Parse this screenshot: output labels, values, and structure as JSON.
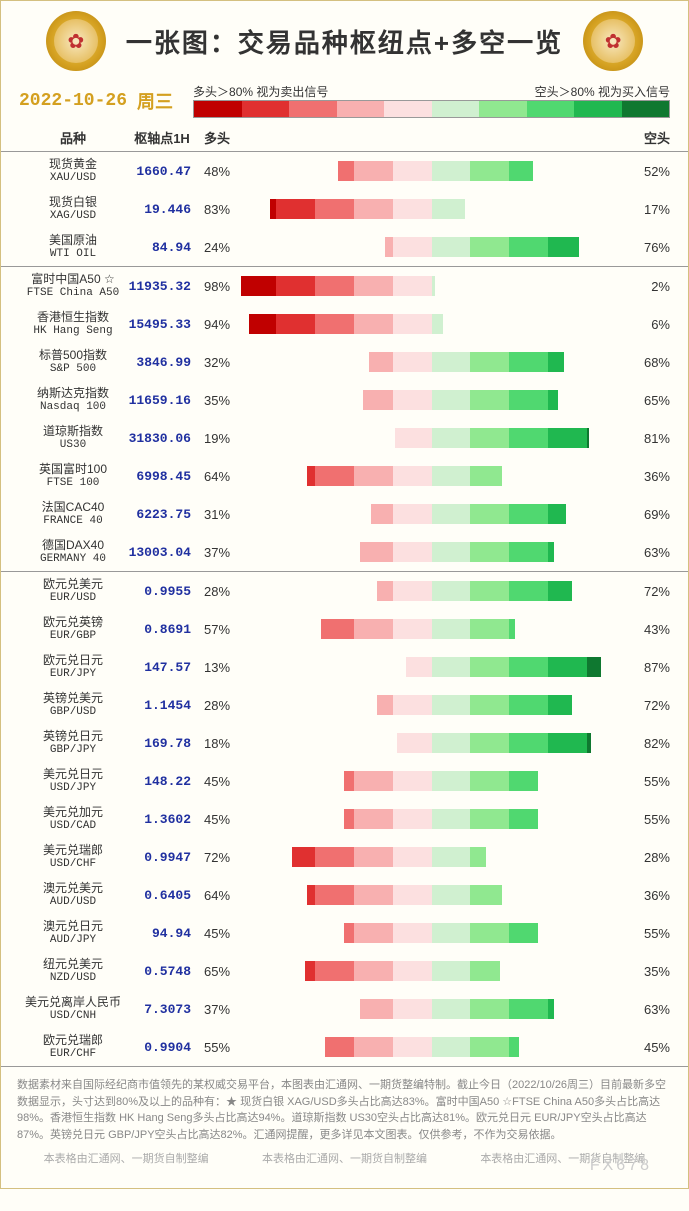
{
  "title": "一张图：交易品种枢纽点+多空一览",
  "date": "2022-10-26",
  "weekday": "周三",
  "legend": {
    "long_label": "多头＞80%  视为卖出信号",
    "short_label": "空头＞80%  视为买入信号",
    "colors_red": [
      "#c00000",
      "#e03030",
      "#f07070",
      "#f8b0b0",
      "#fce0e0"
    ],
    "colors_green": [
      "#d0f0d0",
      "#90e890",
      "#50d870",
      "#20b850",
      "#0f7830"
    ]
  },
  "columns": {
    "name": "品种",
    "pivot": "枢轴点1H",
    "long": "多头",
    "short": "空头"
  },
  "bar_colors": {
    "red_shades": [
      "#fce0e0",
      "#f8b0b0",
      "#f07070",
      "#e03030",
      "#c00000"
    ],
    "green_shades": [
      "#d0f0d0",
      "#90e890",
      "#50d870",
      "#20b850",
      "#0f7830"
    ]
  },
  "sections": [
    {
      "rows": [
        {
          "cn": "现货黄金",
          "en": "XAU/USD",
          "pivot": "1660.47",
          "long": 48,
          "short": 52
        },
        {
          "cn": "现货白银",
          "en": "XAG/USD",
          "pivot": "19.446",
          "long": 83,
          "short": 17
        },
        {
          "cn": "美国原油",
          "en": "WTI OIL",
          "pivot": "84.94",
          "long": 24,
          "short": 76
        }
      ]
    },
    {
      "rows": [
        {
          "cn": "富时中国A50 ☆",
          "en": "FTSE China A50",
          "pivot": "11935.32",
          "long": 98,
          "short": 2
        },
        {
          "cn": "香港恒生指数",
          "en": "HK Hang Seng",
          "pivot": "15495.33",
          "long": 94,
          "short": 6
        },
        {
          "cn": "标普500指数",
          "en": "S&P 500",
          "pivot": "3846.99",
          "long": 32,
          "short": 68
        },
        {
          "cn": "纳斯达克指数",
          "en": "Nasdaq 100",
          "pivot": "11659.16",
          "long": 35,
          "short": 65
        },
        {
          "cn": "道琼斯指数",
          "en": "US30",
          "pivot": "31830.06",
          "long": 19,
          "short": 81
        },
        {
          "cn": "英国富时100",
          "en": "FTSE 100",
          "pivot": "6998.45",
          "long": 64,
          "short": 36
        },
        {
          "cn": "法国CAC40",
          "en": "FRANCE 40",
          "pivot": "6223.75",
          "long": 31,
          "short": 69
        },
        {
          "cn": "德国DAX40",
          "en": "GERMANY 40",
          "pivot": "13003.04",
          "long": 37,
          "short": 63
        }
      ]
    },
    {
      "rows": [
        {
          "cn": "欧元兑美元",
          "en": "EUR/USD",
          "pivot": "0.9955",
          "long": 28,
          "short": 72
        },
        {
          "cn": "欧元兑英镑",
          "en": "EUR/GBP",
          "pivot": "0.8691",
          "long": 57,
          "short": 43
        },
        {
          "cn": "欧元兑日元",
          "en": "EUR/JPY",
          "pivot": "147.57",
          "long": 13,
          "short": 87
        },
        {
          "cn": "英镑兑美元",
          "en": "GBP/USD",
          "pivot": "1.1454",
          "long": 28,
          "short": 72
        },
        {
          "cn": "英镑兑日元",
          "en": "GBP/JPY",
          "pivot": "169.78",
          "long": 18,
          "short": 82
        },
        {
          "cn": "美元兑日元",
          "en": "USD/JPY",
          "pivot": "148.22",
          "long": 45,
          "short": 55
        },
        {
          "cn": "美元兑加元",
          "en": "USD/CAD",
          "pivot": "1.3602",
          "long": 45,
          "short": 55
        },
        {
          "cn": "美元兑瑞郎",
          "en": "USD/CHF",
          "pivot": "0.9947",
          "long": 72,
          "short": 28
        },
        {
          "cn": "澳元兑美元",
          "en": "AUD/USD",
          "pivot": "0.6405",
          "long": 64,
          "short": 36
        },
        {
          "cn": "澳元兑日元",
          "en": "AUD/JPY",
          "pivot": "94.94",
          "long": 45,
          "short": 55
        },
        {
          "cn": "纽元兑美元",
          "en": "NZD/USD",
          "pivot": "0.5748",
          "long": 65,
          "short": 35
        },
        {
          "cn": "美元兑离岸人民币",
          "en": "USD/CNH",
          "pivot": "7.3073",
          "long": 37,
          "short": 63
        },
        {
          "cn": "欧元兑瑞郎",
          "en": "EUR/CHF",
          "pivot": "0.9904",
          "long": 55,
          "short": 45
        }
      ]
    }
  ],
  "footer": "数据素材来自国际经纪商市值领先的某权威交易平台，本图表由汇通网、一期货整编特制。截止今日（2022/10/26周三）目前最新多空数据显示，头寸达到80%及以上的品种有：★ 现货白银 XAG/USD多头占比高达83%。富时中国A50 ☆FTSE China A50多头占比高达98%。香港恒生指数 HK Hang Seng多头占比高达94%。道琼斯指数 US30空头占比高达81%。欧元兑日元 EUR/JPY空头占比高达87%。英镑兑日元 GBP/JPY空头占比高达82%。汇通网提醒，更多详见本文图表。仅供参考，不作为交易依据。",
  "credit": "本表格由汇通网、一期货自制整编",
  "watermark": "FX678"
}
